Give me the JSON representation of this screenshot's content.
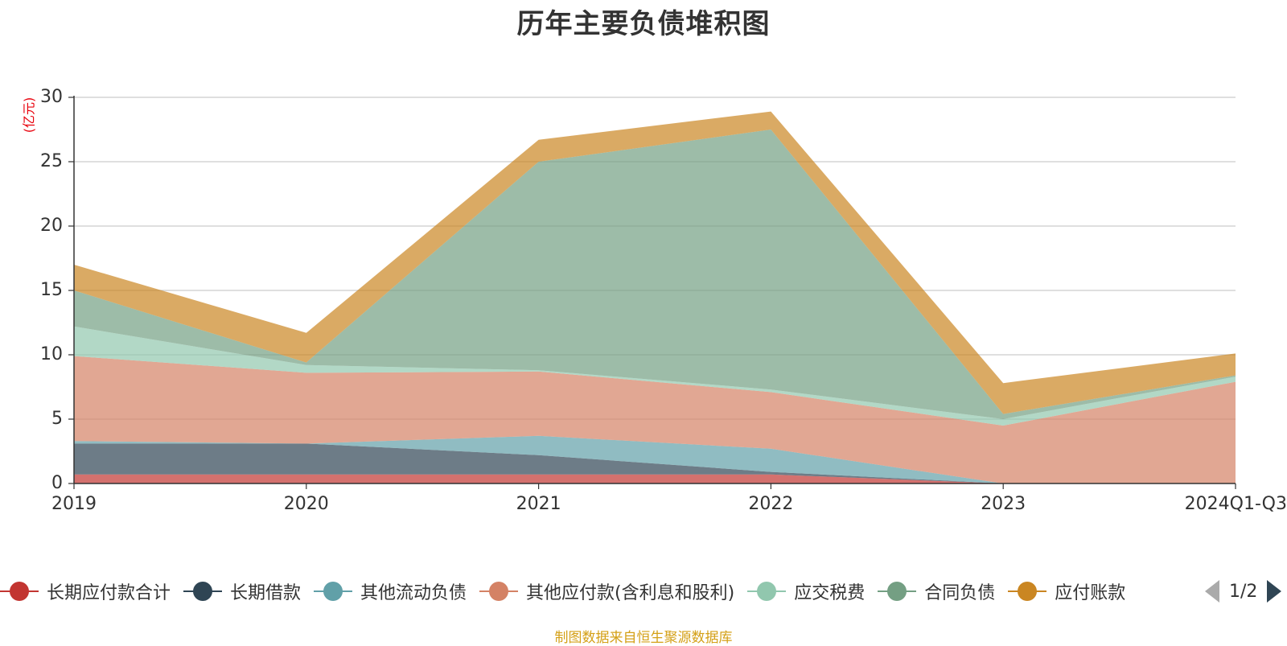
{
  "chart_data": {
    "type": "area",
    "title": "历年主要负债堆积图",
    "ylabel": "(亿元)",
    "xlabel": "",
    "stacked": true,
    "categories": [
      "2019",
      "2020",
      "2021",
      "2022",
      "2023",
      "2024Q1-Q3"
    ],
    "ylim": [
      0,
      30
    ],
    "yticks": [
      0,
      5,
      10,
      15,
      20,
      25,
      30
    ],
    "grid": true,
    "legend_position": "bottom",
    "series": [
      {
        "name": "长期应付款合计",
        "color": "#c23531",
        "values": [
          0.7,
          0.7,
          0.7,
          0.7,
          0.0,
          0.0
        ]
      },
      {
        "name": "长期借款",
        "color": "#2f4554",
        "values": [
          2.4,
          2.4,
          1.5,
          0.2,
          0.0,
          0.0
        ]
      },
      {
        "name": "其他流动负债",
        "color": "#61a0a8",
        "values": [
          0.2,
          0.0,
          1.5,
          1.8,
          0.0,
          0.0
        ]
      },
      {
        "name": "其他应付款(含利息和股利)",
        "color": "#d48265",
        "values": [
          6.6,
          5.5,
          5.0,
          4.4,
          4.5,
          7.9
        ]
      },
      {
        "name": "应交税费",
        "color": "#91c7ae",
        "values": [
          2.3,
          0.6,
          0.1,
          0.2,
          0.5,
          0.4
        ]
      },
      {
        "name": "合同负债",
        "color": "#749f83",
        "values": [
          2.8,
          0.2,
          16.2,
          20.2,
          0.4,
          0.1
        ]
      },
      {
        "name": "应付账款",
        "color": "#ca8622",
        "values": [
          2.0,
          2.3,
          1.7,
          1.4,
          2.4,
          1.7
        ]
      }
    ]
  },
  "legend": {
    "visible_labels": [
      "长期应付款合计",
      "长期借款",
      "其他流动负债",
      "其他应付款(含利息和股利)",
      "应交税费",
      "合同负债",
      "应付账款"
    ],
    "page_indicator": "1/2"
  },
  "footer": {
    "source_note": "制图数据来自恒生聚源数据库"
  }
}
